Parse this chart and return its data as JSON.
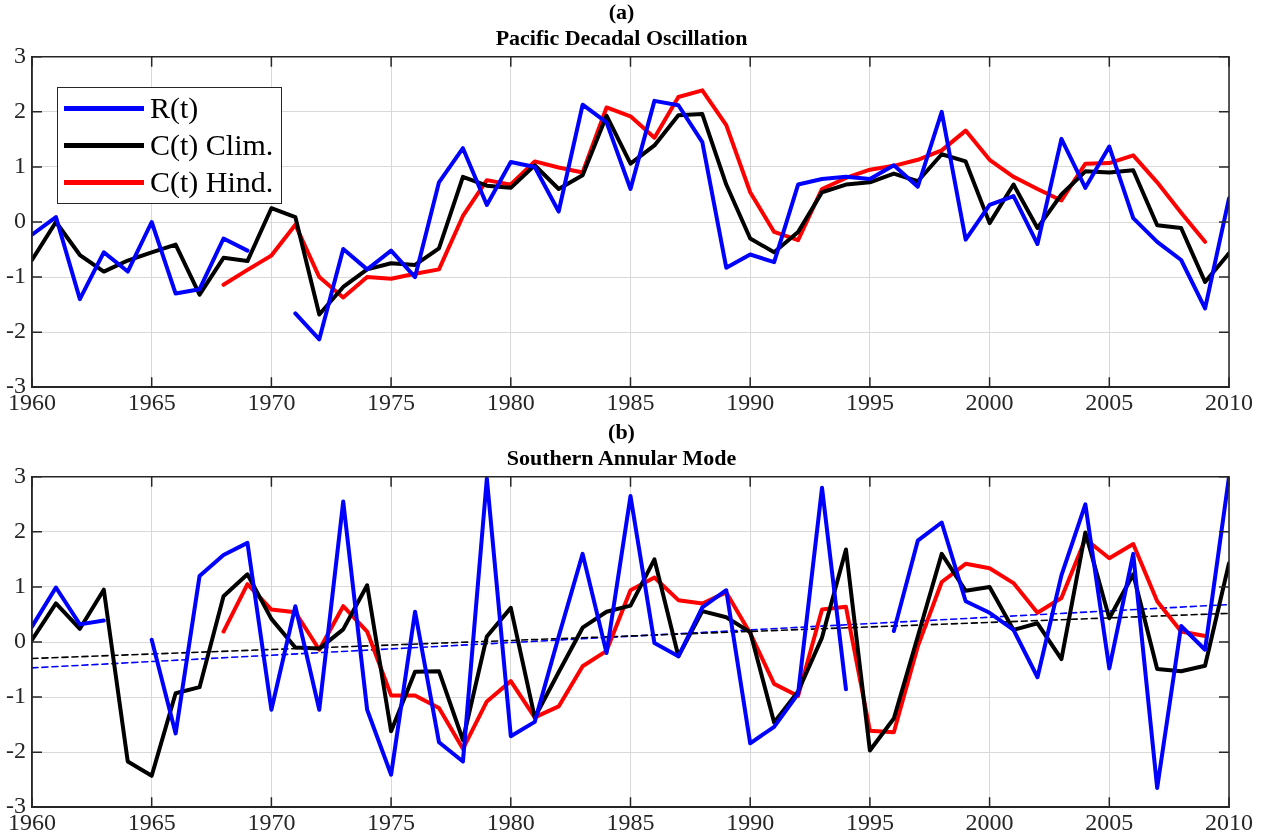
{
  "chart_data": [
    {
      "type": "line",
      "title": "(a)",
      "subtitle": "Pacific Decadal Oscillation",
      "x": [
        1960,
        1961,
        1962,
        1963,
        1964,
        1965,
        1966,
        1967,
        1968,
        1969,
        1970,
        1971,
        1972,
        1973,
        1974,
        1975,
        1976,
        1977,
        1978,
        1979,
        1980,
        1981,
        1982,
        1983,
        1984,
        1985,
        1986,
        1987,
        1988,
        1989,
        1990,
        1991,
        1992,
        1993,
        1994,
        1995,
        1996,
        1997,
        1998,
        1999,
        2000,
        2001,
        2002,
        2003,
        2004,
        2005,
        2006,
        2007,
        2008,
        2009,
        2010
      ],
      "xlim": [
        1960,
        2010
      ],
      "xticks": [
        1960,
        1965,
        1970,
        1975,
        1980,
        1985,
        1990,
        1995,
        2000,
        2005,
        2010
      ],
      "ylim": [
        -3,
        3
      ],
      "yticks": [
        -3,
        -2,
        -1,
        0,
        1,
        2,
        3
      ],
      "grid": true,
      "legend": "top left",
      "series": [
        {
          "name": "R(t)",
          "color": "#0000ff",
          "values": [
            -0.23,
            0.09,
            -1.4,
            -0.55,
            -0.9,
            0.0,
            -1.3,
            -1.22,
            -0.3,
            -0.52,
            null,
            -1.66,
            -2.13,
            -0.49,
            -0.86,
            -0.52,
            -1.0,
            0.72,
            1.34,
            0.31,
            1.09,
            1.0,
            0.19,
            2.13,
            1.81,
            0.6,
            2.2,
            2.12,
            1.45,
            -0.83,
            -0.59,
            -0.73,
            0.68,
            0.78,
            0.82,
            0.78,
            1.03,
            0.64,
            2.0,
            -0.32,
            0.31,
            0.47,
            -0.4,
            1.51,
            0.62,
            1.37,
            0.07,
            -0.36,
            -0.69,
            -1.57,
            0.43
          ]
        },
        {
          "name": "C(t) Clim.",
          "color": "#000000",
          "values": [
            -0.69,
            0.0,
            -0.6,
            -0.9,
            -0.7,
            -0.55,
            -0.41,
            -1.32,
            -0.65,
            -0.71,
            0.25,
            0.09,
            -1.68,
            -1.18,
            -0.86,
            -0.75,
            -0.78,
            -0.48,
            0.82,
            0.66,
            0.62,
            1.03,
            0.6,
            0.85,
            1.93,
            1.06,
            1.39,
            1.94,
            1.96,
            0.68,
            -0.3,
            -0.55,
            -0.18,
            0.54,
            0.68,
            0.72,
            0.88,
            0.74,
            1.23,
            1.1,
            -0.02,
            0.68,
            -0.11,
            0.5,
            0.92,
            0.9,
            0.94,
            -0.06,
            -0.11,
            -1.09,
            -0.57
          ]
        },
        {
          "name": "C(t) Hind.",
          "color": "#ff0000",
          "x": [
            1968,
            1969,
            1970,
            1971,
            1972,
            1973,
            1974,
            1975,
            1976,
            1977,
            1978,
            1979,
            1980,
            1981,
            1982,
            1983,
            1984,
            1985,
            1986,
            1987,
            1988,
            1989,
            1990,
            1991,
            1992,
            1993,
            1994,
            1995,
            1996,
            1997,
            1998,
            1999,
            2000,
            2001,
            2002,
            2003,
            2004,
            2005,
            2006,
            2007,
            2008,
            2009
          ],
          "values": [
            -1.14,
            -0.87,
            -0.61,
            -0.05,
            -1.0,
            -1.37,
            -1.0,
            -1.03,
            -0.94,
            -0.86,
            0.11,
            0.76,
            0.68,
            1.1,
            0.99,
            0.9,
            2.08,
            1.92,
            1.53,
            2.27,
            2.39,
            1.76,
            0.54,
            -0.18,
            -0.33,
            0.6,
            0.8,
            0.95,
            1.02,
            1.13,
            1.3,
            1.66,
            1.13,
            0.82,
            0.6,
            0.39,
            1.06,
            1.07,
            1.21,
            0.72,
            0.17,
            -0.36
          ]
        }
      ]
    },
    {
      "type": "line",
      "title": "(b)",
      "subtitle": "Southern Annular Mode",
      "x": [
        1960,
        1961,
        1962,
        1963,
        1964,
        1965,
        1966,
        1967,
        1968,
        1969,
        1970,
        1971,
        1972,
        1973,
        1974,
        1975,
        1976,
        1977,
        1978,
        1979,
        1980,
        1981,
        1982,
        1983,
        1984,
        1985,
        1986,
        1987,
        1988,
        1989,
        1990,
        1991,
        1992,
        1993,
        1994,
        1995,
        1996,
        1997,
        1998,
        1999,
        2000,
        2001,
        2002,
        2003,
        2004,
        2005,
        2006,
        2007,
        2008,
        2009,
        2010
      ],
      "xlim": [
        1960,
        2010
      ],
      "xticks": [
        1960,
        1965,
        1970,
        1975,
        1980,
        1985,
        1990,
        1995,
        2000,
        2005,
        2010
      ],
      "ylim": [
        -3,
        3
      ],
      "yticks": [
        -3,
        -2,
        -1,
        0,
        1,
        2,
        3
      ],
      "grid": true,
      "series": [
        {
          "color": "#0000ff",
          "values": [
            0.28,
            0.99,
            0.32,
            0.39,
            null,
            0.04,
            -1.66,
            1.2,
            1.58,
            1.8,
            -1.23,
            0.65,
            -1.23,
            2.55,
            -1.23,
            -2.41,
            0.55,
            -1.82,
            -2.17,
            2.97,
            -1.71,
            -1.45,
            0.1,
            1.6,
            -0.2,
            2.65,
            -0.02,
            -0.26,
            0.63,
            0.94,
            -1.84,
            -1.54,
            -0.94,
            2.8,
            -0.86,
            null,
            0.2,
            1.84,
            2.17,
            0.74,
            0.53,
            0.22,
            -0.64,
            1.21,
            2.5,
            -0.48,
            1.6,
            -2.65,
            0.29,
            -0.14,
            3.0
          ]
        },
        {
          "color": "#000000",
          "values": [
            0.04,
            0.7,
            0.24,
            0.95,
            -2.17,
            -2.43,
            -0.93,
            -0.82,
            0.83,
            1.23,
            0.42,
            -0.1,
            -0.12,
            0.23,
            1.03,
            -1.62,
            -0.54,
            -0.53,
            -1.78,
            0.1,
            0.62,
            -1.37,
            -0.55,
            0.26,
            0.55,
            0.66,
            1.5,
            -0.26,
            0.56,
            0.45,
            0.18,
            -1.46,
            -0.9,
            0.08,
            1.68,
            -1.97,
            -1.39,
            0.1,
            1.6,
            0.93,
            1.0,
            0.22,
            0.34,
            -0.31,
            1.99,
            0.43,
            1.23,
            -0.49,
            -0.53,
            -0.43,
            1.43
          ]
        },
        {
          "color": "#ff0000",
          "x": [
            1968,
            1969,
            1970,
            1971,
            1972,
            1973,
            1974,
            1975,
            1976,
            1977,
            1978,
            1979,
            1980,
            1981,
            1982,
            1983,
            1984,
            1985,
            1986,
            1987,
            1988,
            1989,
            1990,
            1991,
            1992,
            1993,
            1994,
            1995,
            1996,
            1997,
            1998,
            1999,
            2000,
            2001,
            2002,
            2003,
            2004,
            2005,
            2006,
            2007,
            2008,
            2009
          ],
          "values": [
            0.19,
            1.05,
            0.59,
            0.54,
            -0.14,
            0.65,
            0.19,
            -0.97,
            -0.97,
            -1.2,
            -1.94,
            -1.08,
            -0.71,
            -1.37,
            -1.17,
            -0.44,
            -0.16,
            0.94,
            1.17,
            0.76,
            0.7,
            0.9,
            0.16,
            -0.76,
            -0.98,
            0.59,
            0.64,
            -1.61,
            -1.64,
            -0.08,
            1.09,
            1.42,
            1.34,
            1.07,
            0.53,
            0.8,
            1.87,
            1.52,
            1.78,
            0.74,
            0.19,
            0.11
          ]
        },
        {
          "color": "#000000",
          "line_style": "dashed",
          "x": [
            1960,
            2010
          ],
          "values": [
            -0.3,
            0.52
          ]
        },
        {
          "color": "#0000ff",
          "line_style": "dashed",
          "x": [
            1960,
            2010
          ],
          "values": [
            -0.47,
            0.68
          ]
        }
      ]
    }
  ]
}
